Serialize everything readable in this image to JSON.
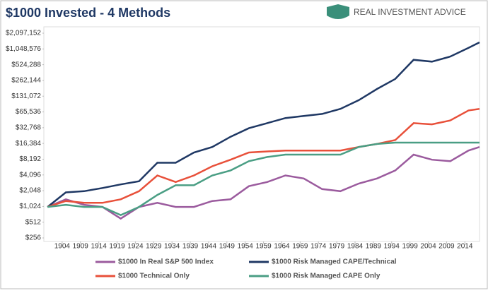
{
  "chart_data": {
    "type": "line",
    "title": "$1000 Invested - 4 Methods",
    "logo_text": "REAL INVESTMENT ADVICE",
    "log_scale": true,
    "log_base": 2,
    "grid": false,
    "legend_position": "bottom",
    "x": [
      1900,
      1905,
      1910,
      1915,
      1920,
      1925,
      1930,
      1935,
      1940,
      1945,
      1950,
      1955,
      1960,
      1965,
      1970,
      1975,
      1980,
      1985,
      1990,
      1995,
      2000,
      2005,
      2010,
      2015,
      2018
    ],
    "xlim": [
      1899,
      2018
    ],
    "xticks": [
      1904,
      1909,
      1914,
      1919,
      1924,
      1929,
      1934,
      1939,
      1944,
      1949,
      1954,
      1959,
      1964,
      1969,
      1974,
      1979,
      1984,
      1989,
      1994,
      1999,
      2004,
      2009,
      2014
    ],
    "ylim": [
      256,
      2097152
    ],
    "yticks": [
      {
        "value": 256,
        "label": "$256"
      },
      {
        "value": 512,
        "label": "$512"
      },
      {
        "value": 1024,
        "label": "$1,024"
      },
      {
        "value": 2048,
        "label": "$2,048"
      },
      {
        "value": 4096,
        "label": "$4,096"
      },
      {
        "value": 8192,
        "label": "$8,192"
      },
      {
        "value": 16384,
        "label": "$16,384"
      },
      {
        "value": 32768,
        "label": "$32,768"
      },
      {
        "value": 65536,
        "label": "$65,536"
      },
      {
        "value": 131072,
        "label": "$131,072"
      },
      {
        "value": 262144,
        "label": "$262,144"
      },
      {
        "value": 524288,
        "label": "$524,288"
      },
      {
        "value": 1048576,
        "label": "$1,048,576"
      },
      {
        "value": 2097152,
        "label": "$2,097,152"
      }
    ],
    "series": [
      {
        "name": "$1000 In Real S&P 500 Index",
        "color": "#9b5b9e",
        "values": [
          1000,
          1400,
          1100,
          1000,
          600,
          1000,
          1200,
          1000,
          1000,
          1300,
          1400,
          2500,
          3000,
          4000,
          3500,
          2200,
          2000,
          2800,
          3500,
          5000,
          10000,
          8000,
          7500,
          12000,
          14000
        ]
      },
      {
        "name": "$1000 Risk Managed CAPE/Technical",
        "color": "#1f3864",
        "values": [
          1000,
          1900,
          2000,
          2300,
          2700,
          3100,
          7000,
          7000,
          11000,
          14000,
          22000,
          32000,
          40000,
          50000,
          55000,
          60000,
          75000,
          110000,
          180000,
          280000,
          650000,
          600000,
          750000,
          1100000,
          1400000
        ]
      },
      {
        "name": "$1000 Technical Only",
        "color": "#e8503a",
        "values": [
          1000,
          1300,
          1200,
          1200,
          1400,
          2000,
          4000,
          3000,
          4000,
          6000,
          8000,
          11000,
          11500,
          12000,
          12000,
          12000,
          12000,
          14000,
          16000,
          19000,
          40000,
          38000,
          45000,
          70000,
          75000
        ]
      },
      {
        "name": "$1000 Risk Managed CAPE Only",
        "color": "#4a9e84",
        "values": [
          1000,
          1100,
          1000,
          1000,
          700,
          1000,
          1700,
          2600,
          2600,
          4000,
          5000,
          7500,
          9000,
          10000,
          10000,
          10000,
          10000,
          14000,
          16000,
          17000,
          17000,
          17000,
          17000,
          17000,
          17000
        ]
      }
    ]
  }
}
